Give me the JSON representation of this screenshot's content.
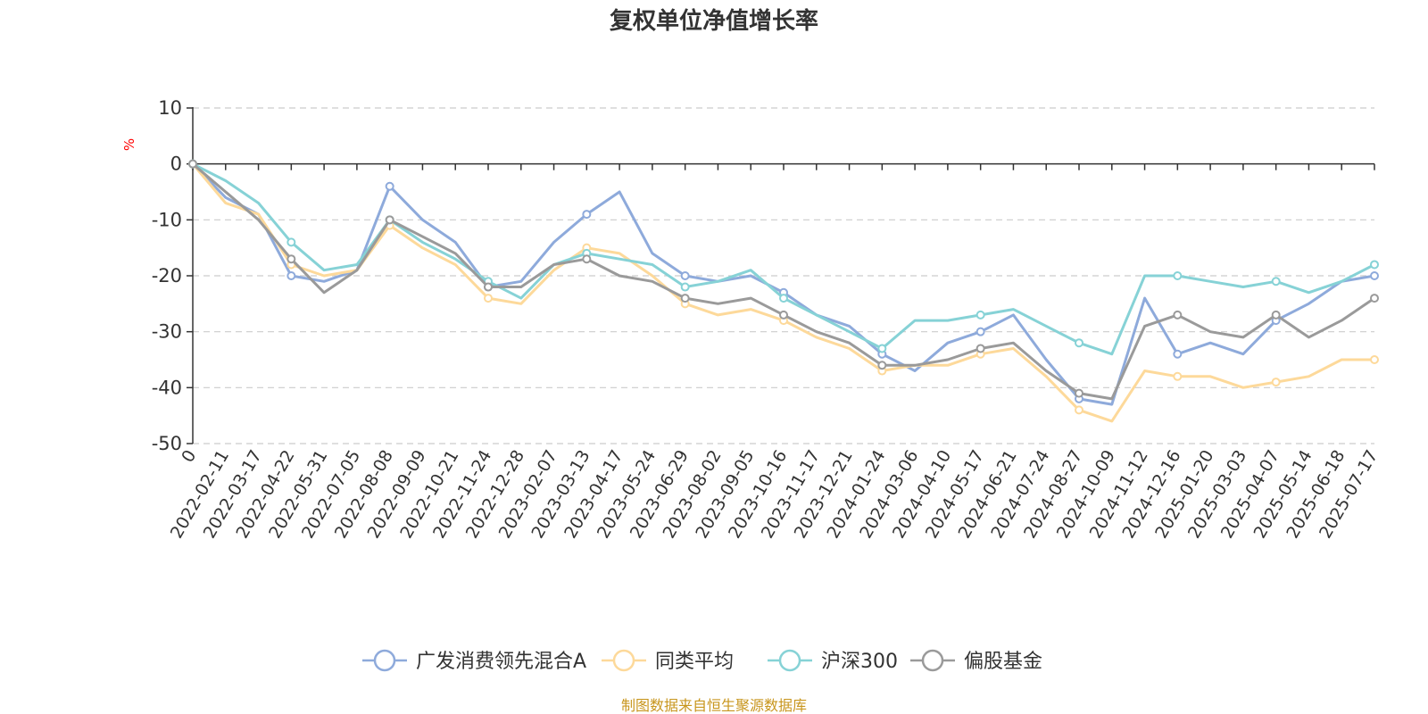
{
  "chart_data": {
    "type": "line",
    "title": "复权单位净值增长率",
    "ylabel": "%",
    "ylim": [
      -50,
      10
    ],
    "yticks": [
      10,
      0,
      -10,
      -20,
      -30,
      -40,
      -50
    ],
    "grid": true,
    "legend_position": "bottom",
    "source": "制图数据来自恒生聚源数据库",
    "x": [
      "0",
      "2022-02-11",
      "2022-03-17",
      "2022-04-22",
      "2022-05-31",
      "2022-07-05",
      "2022-08-08",
      "2022-09-09",
      "2022-10-21",
      "2022-11-24",
      "2022-12-28",
      "2023-02-07",
      "2023-03-13",
      "2023-04-17",
      "2023-05-24",
      "2023-06-29",
      "2023-08-02",
      "2023-09-05",
      "2023-10-16",
      "2023-11-17",
      "2023-12-21",
      "2024-01-24",
      "2024-03-06",
      "2024-04-10",
      "2024-05-17",
      "2024-06-21",
      "2024-07-24",
      "2024-08-27",
      "2024-10-09",
      "2024-11-12",
      "2024-12-16",
      "2025-01-20",
      "2025-03-03",
      "2025-04-07",
      "2025-05-14",
      "2025-06-18",
      "2025-07-17"
    ],
    "series": [
      {
        "name": "广发消费领先混合A",
        "color": "#8eaadb",
        "values": [
          0,
          -6,
          -9,
          -20,
          -21,
          -19,
          -4,
          -10,
          -14,
          -22,
          -21,
          -14,
          -9,
          -5,
          -16,
          -20,
          -21,
          -20,
          -23,
          -27,
          -29,
          -34,
          -37,
          -32,
          -30,
          -27,
          -35,
          -42,
          -43,
          -24,
          -34,
          -32,
          -34,
          -28,
          -25,
          -21,
          -20
        ]
      },
      {
        "name": "同类平均",
        "color": "#fdd99a",
        "values": [
          0,
          -7,
          -9,
          -18,
          -20,
          -19,
          -11,
          -15,
          -18,
          -24,
          -25,
          -19,
          -15,
          -16,
          -20,
          -25,
          -27,
          -26,
          -28,
          -31,
          -33,
          -37,
          -36,
          -36,
          -34,
          -33,
          -38,
          -44,
          -46,
          -37,
          -38,
          -38,
          -40,
          -39,
          -38,
          -35,
          -35
        ]
      },
      {
        "name": "沪深300",
        "color": "#86d2d6",
        "values": [
          0,
          -3,
          -7,
          -14,
          -19,
          -18,
          -10,
          -14,
          -17,
          -21,
          -24,
          -18,
          -16,
          -17,
          -18,
          -22,
          -21,
          -19,
          -24,
          -27,
          -30,
          -33,
          -28,
          -28,
          -27,
          -26,
          -29,
          -32,
          -34,
          -20,
          -20,
          -21,
          -22,
          -21,
          -23,
          -21,
          -18
        ]
      },
      {
        "name": "偏股基金",
        "color": "#9a9a9a",
        "values": [
          0,
          -5,
          -10,
          -17,
          -23,
          -19,
          -10,
          -13,
          -16,
          -22,
          -22,
          -18,
          -17,
          -20,
          -21,
          -24,
          -25,
          -24,
          -27,
          -30,
          -32,
          -36,
          -36,
          -35,
          -33,
          -32,
          -37,
          -41,
          -42,
          -29,
          -27,
          -30,
          -31,
          -27,
          -31,
          -28,
          -24
        ]
      }
    ]
  }
}
